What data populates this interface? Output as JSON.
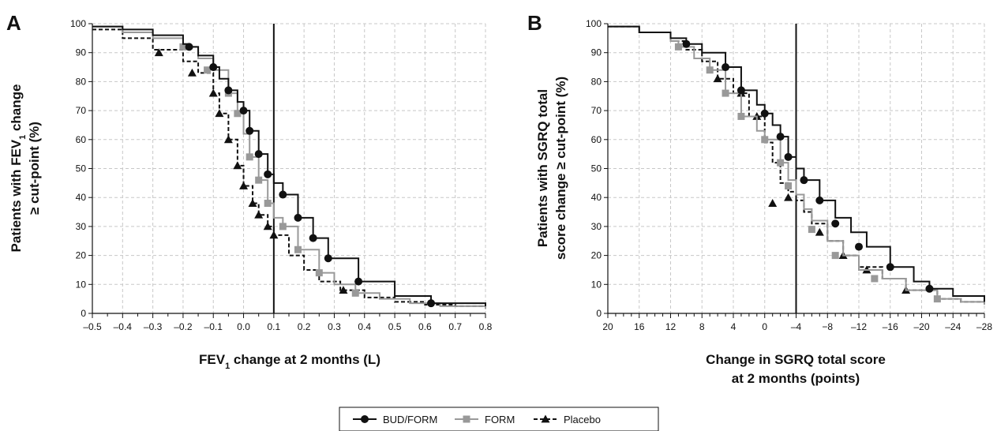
{
  "chart_data": [
    {
      "type": "line",
      "panel": "A",
      "xlabel": "FEV₁ change at 2 months (L)",
      "ylabel": "Patients with FEV₁ change ≥ cut-point (%)",
      "xlim": [
        -0.5,
        0.8
      ],
      "ylim": [
        0,
        100
      ],
      "x_reversed": false,
      "xticks": [
        -0.5,
        -0.4,
        -0.3,
        -0.2,
        -0.1,
        0.0,
        0.1,
        0.2,
        0.3,
        0.4,
        0.5,
        0.6,
        0.7,
        0.8
      ],
      "xtick_labels": [
        "–0.5",
        "–0.4",
        "–0.3",
        "–0.2",
        "–0.1",
        "0.0",
        "0.1",
        "0.2",
        "0.3",
        "0.4",
        "0.5",
        "0.6",
        "0.7",
        "0.8"
      ],
      "yticks": [
        0,
        10,
        20,
        30,
        40,
        50,
        60,
        70,
        80,
        90,
        100
      ],
      "grid": true,
      "reference_line_x": 0.1,
      "series": [
        {
          "name": "BUD/FORM",
          "color": "#111111",
          "style": "solid",
          "marker": "circle",
          "x": [
            -0.5,
            -0.4,
            -0.3,
            -0.2,
            -0.18,
            -0.15,
            -0.1,
            -0.08,
            -0.05,
            -0.02,
            0.0,
            0.02,
            0.05,
            0.08,
            0.1,
            0.13,
            0.18,
            0.23,
            0.28,
            0.38,
            0.5,
            0.62,
            0.8
          ],
          "y": [
            99,
            98,
            96,
            93,
            92,
            89,
            85,
            81,
            77,
            73,
            70,
            63,
            55,
            48,
            45,
            41,
            33,
            26,
            19,
            11,
            6,
            3.5,
            2.5
          ],
          "markers_x": [
            -0.18,
            -0.1,
            -0.05,
            0.0,
            0.02,
            0.05,
            0.08,
            0.13,
            0.18,
            0.23,
            0.28,
            0.38,
            0.62
          ],
          "markers_y": [
            92,
            85,
            77,
            70,
            63,
            55,
            48,
            41,
            33,
            26,
            19,
            11,
            3.5
          ]
        },
        {
          "name": "FORM",
          "color": "#999999",
          "style": "solid",
          "marker": "square",
          "x": [
            -0.5,
            -0.4,
            -0.3,
            -0.2,
            -0.15,
            -0.1,
            -0.05,
            -0.02,
            0.0,
            0.02,
            0.05,
            0.08,
            0.1,
            0.13,
            0.18,
            0.25,
            0.3,
            0.37,
            0.45,
            0.55,
            0.65,
            0.8
          ],
          "y": [
            99,
            97,
            95,
            92,
            88,
            84,
            76,
            69,
            62,
            54,
            46,
            38,
            33,
            30,
            22,
            14,
            10,
            7,
            5,
            3.5,
            2.5,
            1.5
          ],
          "markers_x": [
            -0.2,
            -0.12,
            -0.05,
            -0.02,
            0.02,
            0.05,
            0.08,
            0.13,
            0.18,
            0.25,
            0.37
          ],
          "markers_y": [
            92,
            84,
            76,
            69,
            54,
            46,
            38,
            30,
            22,
            14,
            7
          ]
        },
        {
          "name": "Placebo",
          "color": "#111111",
          "style": "dashed",
          "marker": "triangle",
          "x": [
            -0.5,
            -0.4,
            -0.3,
            -0.2,
            -0.15,
            -0.1,
            -0.08,
            -0.05,
            -0.02,
            0.0,
            0.03,
            0.05,
            0.08,
            0.1,
            0.15,
            0.2,
            0.25,
            0.32,
            0.4,
            0.5,
            0.6,
            0.7,
            0.8
          ],
          "y": [
            98,
            95,
            91,
            87,
            83,
            76,
            69,
            60,
            51,
            44,
            38,
            34,
            30,
            27,
            20,
            15,
            11,
            8,
            5.5,
            4,
            3,
            2.5,
            2
          ],
          "markers_x": [
            -0.28,
            -0.17,
            -0.1,
            -0.08,
            -0.05,
            -0.02,
            0.0,
            0.03,
            0.05,
            0.08,
            0.1,
            0.33
          ],
          "markers_y": [
            90,
            83,
            76,
            69,
            60,
            51,
            44,
            38,
            34,
            30,
            27,
            8
          ]
        }
      ]
    },
    {
      "type": "line",
      "panel": "B",
      "xlabel": "Change in SGRQ total score at 2 months (points)",
      "xlabel_lines": [
        "Change in SGRQ total score",
        "at 2 months (points)"
      ],
      "ylabel": "Patients with SGRQ total score change ≥ cut-point (%)",
      "ylabel_lines": [
        "Patients with SGRQ total",
        "score change ≥ cut-point (%)"
      ],
      "xlim": [
        20,
        -28
      ],
      "ylim": [
        0,
        100
      ],
      "x_reversed": true,
      "xticks": [
        20,
        16,
        12,
        8,
        4,
        0,
        -4,
        -8,
        -12,
        -16,
        -20,
        -24,
        -28
      ],
      "xtick_labels": [
        "20",
        "16",
        "12",
        "8",
        "4",
        "0",
        "–4",
        "−8",
        "–12",
        "–16",
        "–20",
        "–24",
        "–28"
      ],
      "yticks": [
        0,
        10,
        20,
        30,
        40,
        50,
        60,
        70,
        80,
        90,
        100
      ],
      "grid": true,
      "reference_line_x": -4,
      "series": [
        {
          "name": "BUD/FORM",
          "color": "#111111",
          "style": "solid",
          "marker": "circle",
          "x": [
            20,
            16,
            12,
            10,
            8,
            5,
            3,
            1,
            0,
            -1,
            -2,
            -3,
            -4,
            -5,
            -7,
            -9,
            -11,
            -13,
            -16,
            -19,
            -21,
            -24,
            -28
          ],
          "y": [
            99,
            97,
            95,
            93,
            90,
            85,
            77,
            72,
            69,
            65,
            61,
            54,
            50,
            46,
            39,
            33,
            28,
            23,
            16,
            11,
            8.5,
            6,
            4
          ],
          "markers_x": [
            10,
            5,
            3,
            0,
            -2,
            -3,
            -5,
            -7,
            -9,
            -12,
            -16,
            -21
          ],
          "markers_y": [
            93,
            85,
            77,
            69,
            61,
            54,
            46,
            39,
            31,
            23,
            16,
            8.5
          ]
        },
        {
          "name": "FORM",
          "color": "#999999",
          "style": "solid",
          "marker": "square",
          "x": [
            20,
            16,
            12,
            11,
            9,
            7,
            5,
            3,
            1,
            0,
            -2,
            -3,
            -4,
            -5,
            -6,
            -8,
            -10,
            -12,
            -15,
            -18,
            -22,
            -25,
            -28
          ],
          "y": [
            99,
            97,
            94,
            92,
            88,
            84,
            76,
            68,
            63,
            60,
            52,
            46,
            41,
            36,
            32,
            25,
            20,
            15,
            12,
            8,
            5,
            4,
            3
          ],
          "markers_x": [
            11,
            7,
            5,
            3,
            0,
            -2,
            -3,
            -6,
            -9,
            -14,
            -22
          ],
          "markers_y": [
            92,
            84,
            76,
            68,
            60,
            52,
            44,
            29,
            20,
            12,
            5
          ]
        },
        {
          "name": "Placebo",
          "color": "#111111",
          "style": "dashed",
          "marker": "triangle",
          "x": [
            20,
            16,
            12,
            10,
            8,
            6,
            4,
            2,
            0,
            -1,
            -2,
            -3,
            -4,
            -5,
            -6,
            -8,
            -10,
            -12,
            -15,
            -18,
            -22,
            -25,
            -28
          ],
          "y": [
            99,
            97,
            94,
            91,
            87,
            81,
            76,
            68,
            59,
            52,
            45,
            42,
            39,
            35,
            31,
            25,
            20,
            16,
            12,
            8,
            5,
            4,
            3
          ],
          "markers_x": [
            6,
            3,
            1,
            -1,
            -3,
            -7,
            -10,
            -13,
            -18
          ],
          "markers_y": [
            81,
            76,
            68,
            38,
            40,
            28,
            20,
            15,
            8
          ]
        }
      ]
    }
  ],
  "legend": {
    "items": [
      {
        "label": "BUD/FORM",
        "color": "#111111",
        "style": "solid",
        "marker": "circle"
      },
      {
        "label": "FORM",
        "color": "#999999",
        "style": "solid",
        "marker": "square"
      },
      {
        "label": "Placebo",
        "color": "#111111",
        "style": "dashed",
        "marker": "triangle"
      }
    ]
  }
}
